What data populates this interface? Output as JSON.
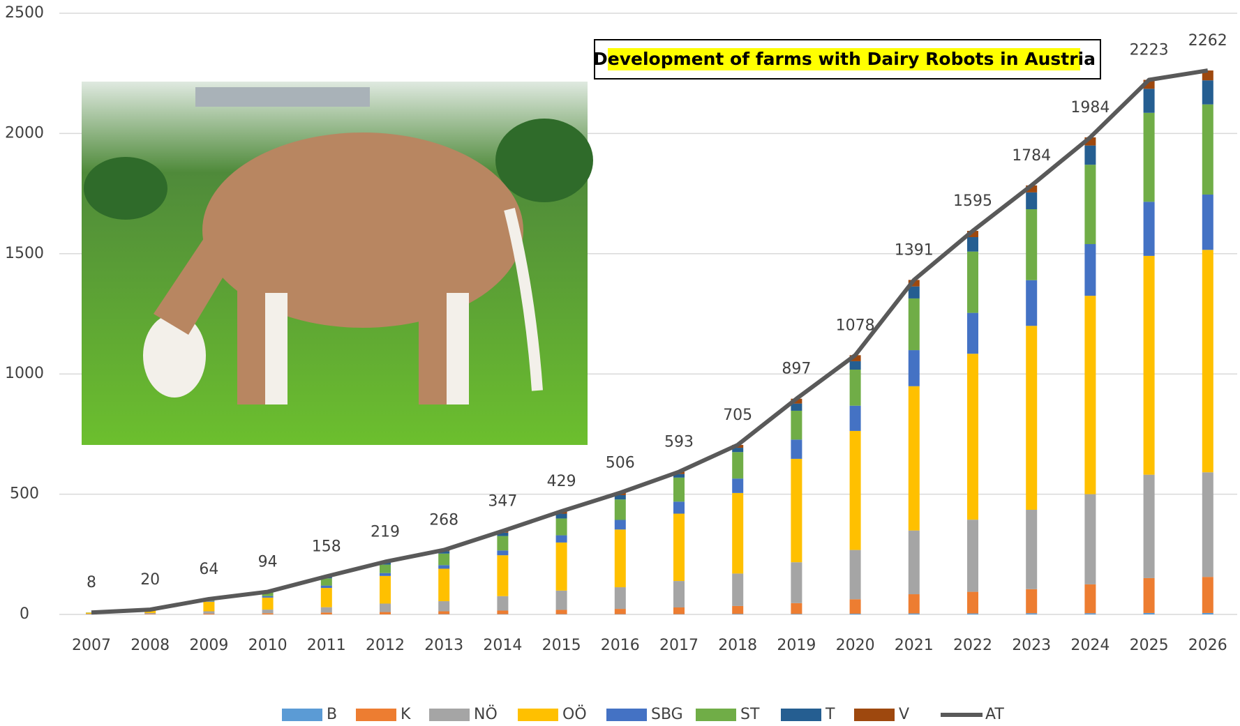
{
  "chart_data": {
    "type": "bar",
    "stacked": true,
    "annotation": "Development of farms with Dairy Robots in Austria",
    "categories": [
      "2007",
      "2008",
      "2009",
      "2010",
      "2011",
      "2012",
      "2013",
      "2014",
      "2015",
      "2016",
      "2017",
      "2018",
      "2019",
      "2020",
      "2021",
      "2022",
      "2023",
      "2024",
      "2025",
      "2026"
    ],
    "series": [
      {
        "name": "B",
        "color": "#5b9bd5",
        "type": "bar",
        "values": [
          0,
          0,
          0,
          0,
          0,
          0,
          1,
          1,
          1,
          1,
          1,
          2,
          2,
          3,
          4,
          4,
          5,
          5,
          6,
          6
        ]
      },
      {
        "name": "K",
        "color": "#ed7d31",
        "type": "bar",
        "values": [
          1,
          2,
          3,
          5,
          8,
          10,
          12,
          15,
          18,
          22,
          28,
          33,
          45,
          60,
          80,
          90,
          100,
          120,
          145,
          150
        ]
      },
      {
        "name": "NÖ",
        "color": "#a5a5a5",
        "type": "bar",
        "values": [
          2,
          4,
          10,
          15,
          22,
          35,
          42,
          60,
          80,
          90,
          110,
          135,
          170,
          205,
          265,
          300,
          330,
          375,
          430,
          435
        ]
      },
      {
        "name": "OÖ",
        "color": "#ffc000",
        "type": "bar",
        "values": [
          4,
          11,
          40,
          50,
          80,
          115,
          135,
          170,
          200,
          240,
          280,
          335,
          430,
          495,
          600,
          690,
          765,
          825,
          910,
          925
        ]
      },
      {
        "name": "SBG",
        "color": "#4472c4",
        "type": "bar",
        "values": [
          0,
          1,
          3,
          6,
          10,
          12,
          15,
          20,
          30,
          40,
          50,
          60,
          80,
          105,
          150,
          170,
          190,
          215,
          225,
          230
        ]
      },
      {
        "name": "ST",
        "color": "#70ad47",
        "type": "bar",
        "values": [
          1,
          2,
          7,
          15,
          30,
          35,
          48,
          60,
          70,
          85,
          100,
          110,
          120,
          150,
          215,
          255,
          295,
          330,
          370,
          375
        ]
      },
      {
        "name": "T",
        "color": "#255e91",
        "type": "bar",
        "values": [
          0,
          0,
          1,
          2,
          5,
          8,
          10,
          14,
          20,
          18,
          15,
          18,
          30,
          35,
          50,
          60,
          70,
          80,
          100,
          100
        ]
      },
      {
        "name": "V",
        "color": "#9e480e",
        "type": "bar",
        "values": [
          0,
          0,
          0,
          1,
          3,
          4,
          5,
          7,
          10,
          10,
          9,
          12,
          20,
          25,
          27,
          26,
          29,
          34,
          37,
          41
        ]
      },
      {
        "name": "AT",
        "color": "#595959",
        "type": "line",
        "values": [
          8,
          20,
          64,
          94,
          158,
          219,
          268,
          347,
          429,
          506,
          593,
          705,
          897,
          1078,
          1391,
          1595,
          1784,
          1984,
          2223,
          2262
        ]
      }
    ],
    "ylim": [
      0,
      2500
    ],
    "yticks": [
      0,
      500,
      1000,
      1500,
      2000,
      2500
    ],
    "grid": true,
    "legend": "bottom"
  }
}
